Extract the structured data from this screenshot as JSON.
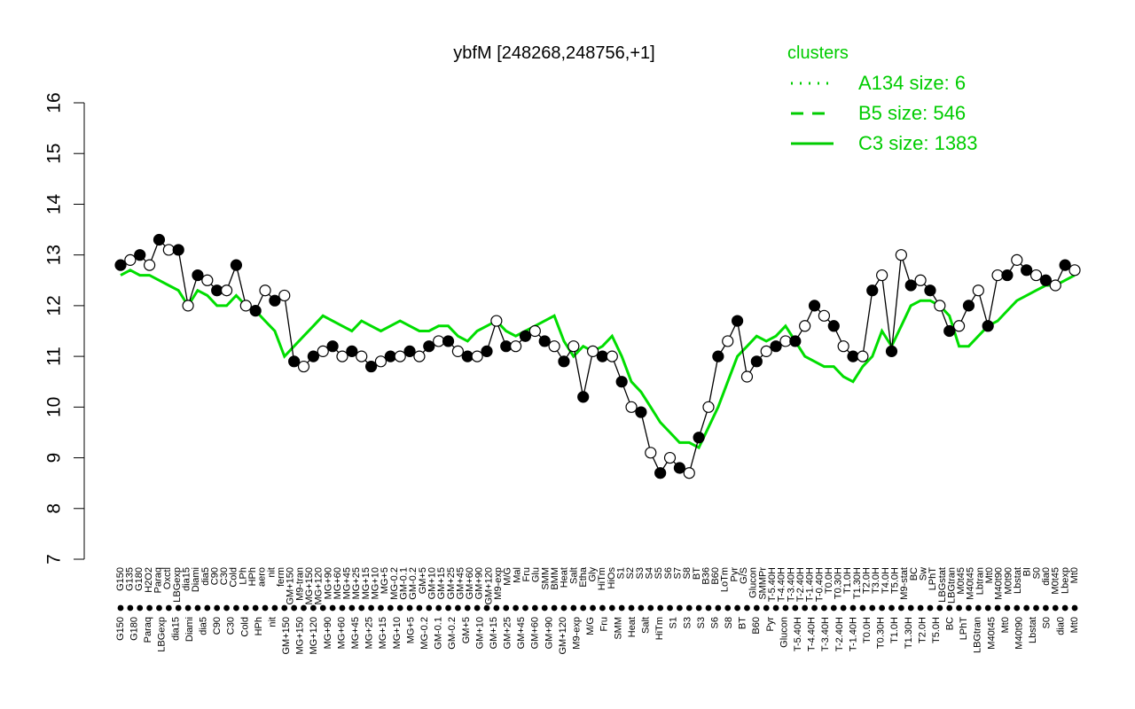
{
  "chart_data": {
    "type": "line",
    "title": "ybfM [248268,248756,+1]",
    "xlabel": "",
    "ylabel": "",
    "ylim": [
      7,
      16
    ],
    "yticks": [
      7,
      8,
      9,
      10,
      11,
      12,
      13,
      14,
      15,
      16
    ],
    "legend": {
      "title": "clusters",
      "placement": "top-right",
      "color": "#00cc00",
      "entries": [
        {
          "label": "A134 size: 6",
          "style": "dotted"
        },
        {
          "label": "B5 size: 546",
          "style": "dashed"
        },
        {
          "label": "C3 size: 1383",
          "style": "solid"
        }
      ]
    },
    "x_labels_upper": [
      "G150",
      "G135",
      "G180",
      "H2O2",
      "Paraq",
      "Oxctl",
      "LBGexp",
      "dia15",
      "Diami",
      "dia5",
      "C90",
      "C30",
      "Cold",
      "LPh",
      "HPh",
      "aero",
      "nit",
      "ferm",
      "GM+150",
      "M9-tran",
      "MG+150",
      "MG+120",
      "MG+90",
      "MG+60",
      "MG+45",
      "MG+25",
      "MG+15",
      "MG+10",
      "MG+5",
      "MG-0.2",
      "GM-0.1",
      "GM-0.2",
      "GM+5",
      "GM+10",
      "GM+15",
      "GM+25",
      "GM+45",
      "GM+60",
      "GM+90",
      "GM+120",
      "M9-exp",
      "M/G",
      "Mal",
      "Fru",
      "Glu",
      "SMM",
      "BMM",
      "Heat",
      "Salt",
      "Etha",
      "Gly",
      "HiTm",
      "HiOs",
      "S1",
      "S2",
      "S3",
      "S4",
      "S5",
      "S6",
      "S7",
      "S8",
      "BT",
      "B36",
      "B60",
      "LoTm",
      "Pyr",
      "G/S",
      "Glucon",
      "SMMPr",
      "T-5.40H",
      "T-4.40H",
      "T-3.40H",
      "T-2.40H",
      "T-1.40H",
      "T-0.40H",
      "T0.0H",
      "T0.30H",
      "T1.0H",
      "T1.30H",
      "T2.0H",
      "T3.0H",
      "T4.0H",
      "T5.0H",
      "M9-stat",
      "BC",
      "Sw",
      "LPhT",
      "LBGstat",
      "LBGtran",
      "M0t45",
      "M40t45",
      "Lbtran",
      "Mt0",
      "M40t90",
      "M0t90",
      "Lbstat",
      "BI",
      "S0",
      "dia0",
      "M0t45",
      "Lbexp",
      "Mt0"
    ],
    "x_labels_lower": [
      "G150",
      "G180",
      "Paraq",
      "LBGexp",
      "dia15",
      "Diami",
      "dia5",
      "C90",
      "C30",
      "Cold",
      "HPh",
      "nit",
      "GM+150",
      "MG+150",
      "MG+120",
      "MG+90",
      "MG+60",
      "MG+45",
      "MG+25",
      "MG+15",
      "MG+10",
      "MG+5",
      "MG-0.2",
      "GM-0.1",
      "GM-0.2",
      "GM+5",
      "GM+10",
      "GM+15",
      "GM+25",
      "GM+45",
      "GM+60",
      "GM+90",
      "GM+120",
      "M9-exp",
      "M/G",
      "Fru",
      "SMM",
      "Heat",
      "Salt",
      "HiTm",
      "S1",
      "S3",
      "S3",
      "S6",
      "S8",
      "BT",
      "B60",
      "Pyr",
      "Glucon",
      "T-5.40H",
      "T-4.40H",
      "T-3.40H",
      "T-2.40H",
      "T-1.40H",
      "T0.0H",
      "T0.30H",
      "T1.0H",
      "T1.30H",
      "T2.0H",
      "T5.0H",
      "BC",
      "LPhT",
      "LBGtran",
      "M40t45",
      "Mt0",
      "M40t90",
      "Lbstat",
      "S0",
      "dia0",
      "Mt0"
    ],
    "x": [
      0,
      1,
      2,
      3,
      4,
      5,
      6,
      7,
      8,
      9,
      10,
      11,
      12,
      13,
      14,
      15,
      16,
      17,
      18,
      19,
      20,
      21,
      22,
      23,
      24,
      25,
      26,
      27,
      28,
      29,
      30,
      31,
      32,
      33,
      34,
      35,
      36,
      37,
      38,
      39,
      40,
      41,
      42,
      43,
      44,
      45,
      46,
      47,
      48,
      49,
      50,
      51,
      52,
      53,
      54,
      55,
      56,
      57,
      58,
      59,
      60,
      61,
      62,
      63,
      64,
      65,
      66,
      67,
      68,
      69,
      70,
      71,
      72,
      73,
      74,
      75,
      76,
      77,
      78,
      79,
      80,
      81,
      82,
      83,
      84,
      85,
      86,
      87,
      88,
      89,
      90,
      91,
      92,
      93,
      94,
      95,
      96,
      97,
      98,
      99
    ],
    "series": [
      {
        "name": "",
        "style": "points",
        "values": [
          12.8,
          12.9,
          13.0,
          12.8,
          13.3,
          13.1,
          13.1,
          12.0,
          12.6,
          12.5,
          12.3,
          12.3,
          12.8,
          12.0,
          11.9,
          12.3,
          12.1,
          12.2,
          10.9,
          10.8,
          11.0,
          11.1,
          11.2,
          11.0,
          11.1,
          11.0,
          10.8,
          10.9,
          11.0,
          11.0,
          11.1,
          11.0,
          11.2,
          11.3,
          11.3,
          11.1,
          11.0,
          11.0,
          11.1,
          11.7,
          11.2,
          11.2,
          11.4,
          11.5,
          11.3,
          11.2,
          10.9,
          11.2,
          10.2,
          11.1,
          11.0,
          11.0,
          10.5,
          10.0,
          9.9,
          9.1,
          8.7,
          9.0,
          8.8,
          8.7,
          9.4,
          10.0,
          11.0,
          11.3,
          11.7,
          10.6,
          10.9,
          11.1,
          11.2,
          11.3,
          11.3,
          11.6,
          12.0,
          11.8,
          11.6,
          11.2,
          11.0,
          11.0,
          12.3,
          12.6,
          11.1,
          13.0,
          12.4,
          12.5,
          12.3,
          12.0,
          11.5,
          11.6,
          12.0,
          12.3,
          11.6,
          12.6,
          12.6,
          12.9,
          12.7,
          12.6,
          12.5,
          12.4,
          12.8,
          12.7
        ]
      },
      {
        "name": "",
        "style": "solid",
        "values": [
          12.6,
          12.7,
          12.6,
          12.6,
          12.5,
          12.4,
          12.3,
          12.0,
          12.3,
          12.2,
          12.0,
          12.0,
          12.2,
          12.0,
          11.9,
          11.7,
          11.5,
          11.0,
          11.2,
          11.4,
          11.6,
          11.8,
          11.7,
          11.6,
          11.5,
          11.7,
          11.6,
          11.5,
          11.6,
          11.7,
          11.6,
          11.5,
          11.5,
          11.6,
          11.6,
          11.4,
          11.3,
          11.5,
          11.6,
          11.7,
          11.5,
          11.4,
          11.5,
          11.6,
          11.7,
          11.8,
          11.3,
          11.0,
          11.2,
          11.1,
          11.2,
          11.4,
          11.0,
          10.5,
          10.3,
          10.0,
          9.7,
          9.5,
          9.3,
          9.3,
          9.2,
          9.6,
          10.0,
          10.5,
          11.0,
          11.2,
          11.4,
          11.3,
          11.4,
          11.6,
          11.3,
          11.0,
          10.9,
          10.8,
          10.8,
          10.6,
          10.5,
          10.8,
          11.0,
          11.5,
          11.2,
          11.6,
          12.0,
          12.1,
          12.1,
          12.0,
          11.8,
          11.2,
          11.2,
          11.4,
          11.6,
          11.7,
          11.9,
          12.1,
          12.2,
          12.3,
          12.4,
          12.4,
          12.5,
          12.6
        ]
      }
    ]
  }
}
